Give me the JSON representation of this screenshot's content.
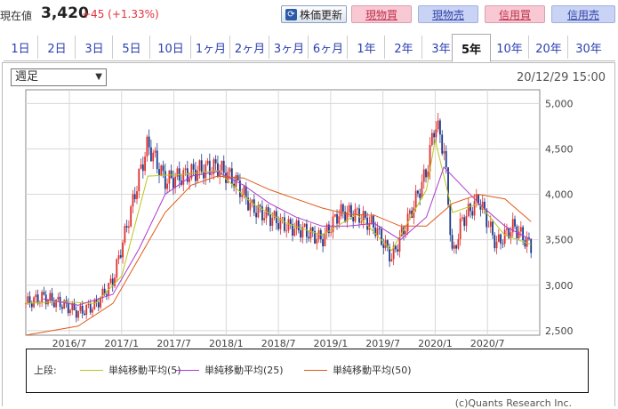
{
  "header": {
    "price_label": "現在値",
    "price": "3,420",
    "change": "+45 (+1.33%)",
    "refresh_label": "株価更新",
    "refresh_icon": "refresh-icon",
    "buttons": [
      "現物買",
      "現物売",
      "信用買",
      "信用売"
    ]
  },
  "tabs": [
    "1日",
    "2日",
    "3日",
    "5日",
    "10日",
    "1ヶ月",
    "2ヶ月",
    "3ヶ月",
    "6ヶ月",
    "1年",
    "2年",
    "3年",
    "5年",
    "10年",
    "20年",
    "30年"
  ],
  "active_tab": "5年",
  "interval_select": "週足",
  "datetime": "20/12/29 15:00",
  "legend": {
    "prefix": "上段:",
    "items": [
      {
        "label": "単純移動平均(5)",
        "color": "#b8c81c"
      },
      {
        "label": "単純移動平均(25)",
        "color": "#b03ad0"
      },
      {
        "label": "単純移動平均(50)",
        "color": "#e05a18"
      }
    ]
  },
  "credit": "(c)Quants Research Inc.",
  "colors": {
    "up": "#e03030",
    "down": "#1a3a8a",
    "accent_blue": "#2a3fb0"
  },
  "chart_data": {
    "type": "line",
    "x_ticks": [
      "2016/7",
      "2017/1",
      "2017/7",
      "2018/1",
      "2018/7",
      "2019/1",
      "2019/7",
      "2020/1",
      "2020/7"
    ],
    "y_ticks": [
      "2,500",
      "3,000",
      "3,500",
      "4,000",
      "4,500",
      "5,000"
    ],
    "ylim": [
      2450,
      5150
    ],
    "grid": true,
    "legend_position": "bottom",
    "price_series": {
      "x": [
        "2016/2",
        "2016/4",
        "2016/6",
        "2016/8",
        "2016/10",
        "2016/12",
        "2017/2",
        "2017/3",
        "2017/4",
        "2017/6",
        "2017/8",
        "2017/10",
        "2017/12",
        "2018/2",
        "2018/4",
        "2018/6",
        "2018/8",
        "2018/10",
        "2018/12",
        "2019/2",
        "2019/4",
        "2019/6",
        "2019/8",
        "2019/10",
        "2019/12",
        "2020/1",
        "2020/2",
        "2020/3",
        "2020/4",
        "2020/6",
        "2020/8",
        "2020/10",
        "2020/12"
      ],
      "values": [
        2800,
        2870,
        2800,
        2700,
        2780,
        3050,
        3800,
        4200,
        4550,
        4150,
        4200,
        4270,
        4300,
        4150,
        3850,
        3750,
        3650,
        3600,
        3500,
        3800,
        3780,
        3650,
        3300,
        3750,
        4250,
        4800,
        4500,
        3300,
        3700,
        3950,
        3450,
        3650,
        3420
      ]
    },
    "series": [
      {
        "name": "単純移動平均(5)",
        "x": [
          "2016/2",
          "2016/6",
          "2016/10",
          "2017/1",
          "2017/4",
          "2017/8",
          "2017/12",
          "2018/4",
          "2018/8",
          "2018/12",
          "2019/4",
          "2019/8",
          "2019/12",
          "2020/1",
          "2020/3",
          "2020/6",
          "2020/9",
          "2020/12"
        ],
        "values": [
          2800,
          2820,
          2800,
          3100,
          4200,
          4220,
          4260,
          3900,
          3680,
          3550,
          3780,
          3380,
          4050,
          4600,
          3800,
          3900,
          3550,
          3450
        ]
      },
      {
        "name": "単純移動平均(25)",
        "x": [
          "2016/4",
          "2016/8",
          "2016/12",
          "2017/3",
          "2017/6",
          "2017/9",
          "2017/12",
          "2018/3",
          "2018/6",
          "2018/9",
          "2018/12",
          "2019/3",
          "2019/6",
          "2019/9",
          "2019/12",
          "2020/2",
          "2020/4",
          "2020/6",
          "2020/9",
          "2020/12"
        ],
        "values": [
          2850,
          2780,
          2900,
          3400,
          4000,
          4200,
          4250,
          4100,
          3900,
          3750,
          3650,
          3650,
          3680,
          3500,
          3750,
          4300,
          4100,
          3900,
          3650,
          3500
        ]
      },
      {
        "name": "単純移動平均(50)",
        "x": [
          "2016/2",
          "2016/8",
          "2016/12",
          "2017/3",
          "2017/6",
          "2017/9",
          "2017/12",
          "2018/3",
          "2018/6",
          "2018/9",
          "2018/12",
          "2019/3",
          "2019/6",
          "2019/9",
          "2019/12",
          "2020/3",
          "2020/6",
          "2020/9",
          "2020/12"
        ],
        "values": [
          2450,
          2550,
          2800,
          3300,
          3800,
          4100,
          4200,
          4180,
          4050,
          3950,
          3850,
          3780,
          3770,
          3650,
          3650,
          3900,
          4000,
          3950,
          3700
        ]
      }
    ]
  }
}
